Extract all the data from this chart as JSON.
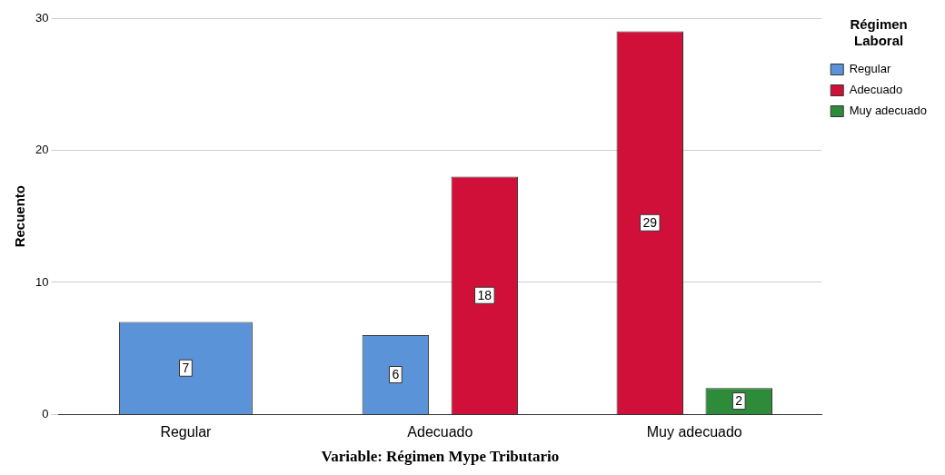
{
  "chart_data": {
    "type": "bar",
    "xlabel": "Variable: Régimen Mype Tributario",
    "ylabel": "Recuento",
    "legend_title": "Régimen\nLaboral",
    "categories": [
      "Regular",
      "Adecuado",
      "Muy adecuado"
    ],
    "series": [
      {
        "name": "Regular",
        "color": "#5b93d8",
        "values": [
          7,
          6,
          null
        ]
      },
      {
        "name": "Adecuado",
        "color": "#d1103a",
        "values": [
          null,
          18,
          29
        ]
      },
      {
        "name": "Muy adecuado",
        "color": "#2e8b3a",
        "values": [
          null,
          null,
          2
        ]
      }
    ],
    "ylim": [
      0,
      30
    ],
    "yticks": [
      0,
      10,
      20,
      30
    ],
    "grid": "y",
    "legend": "top right",
    "data_labels": true
  }
}
